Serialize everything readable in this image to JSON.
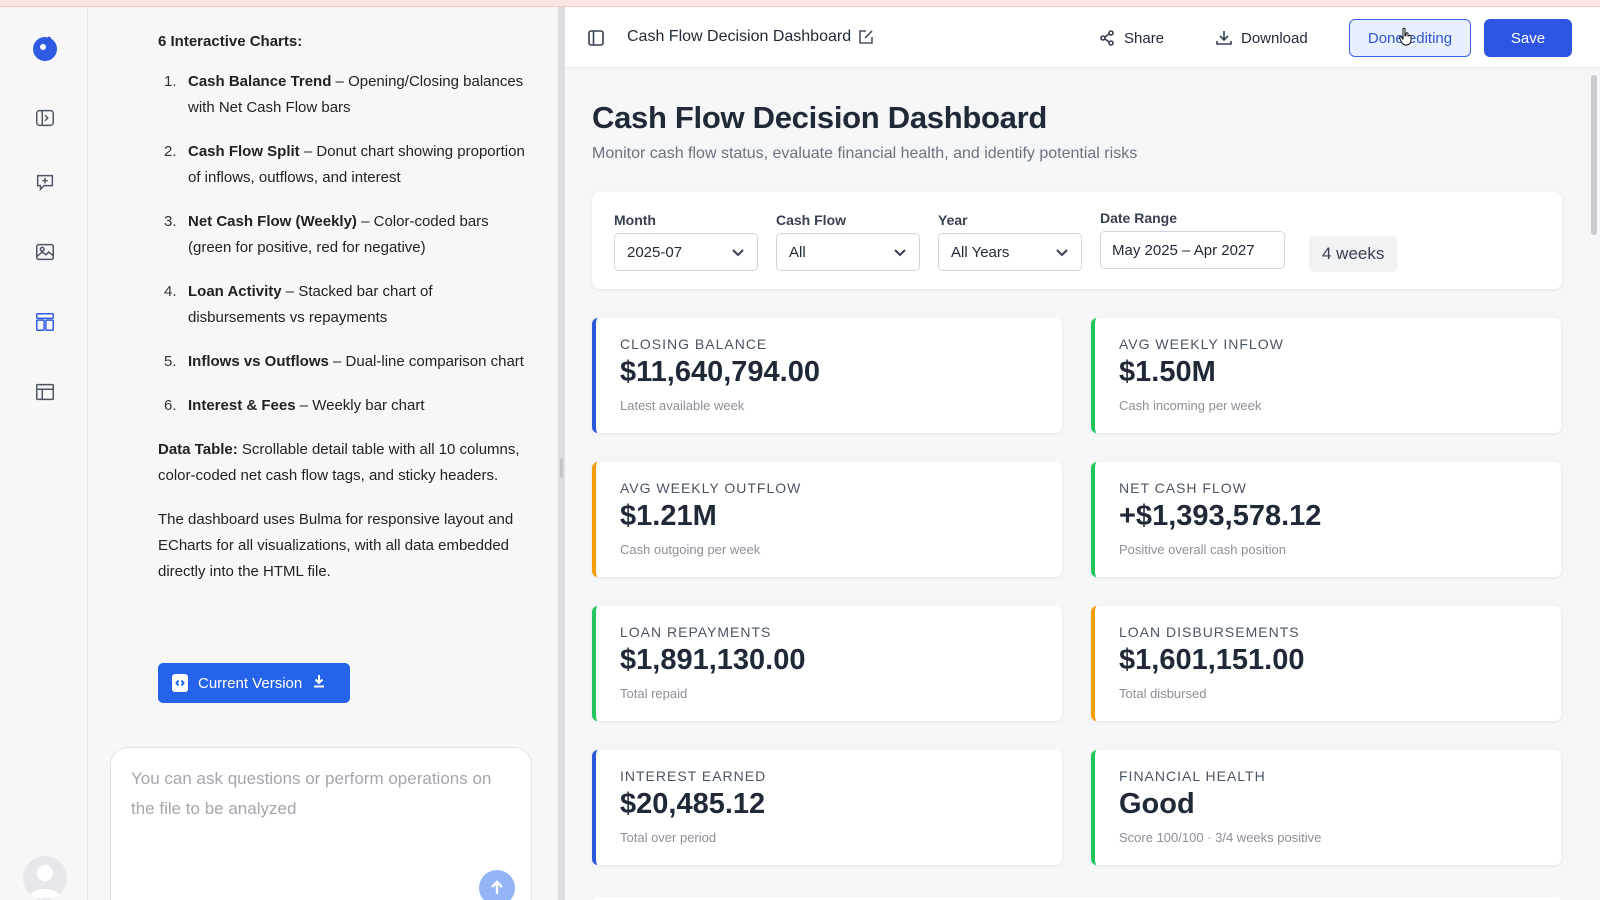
{
  "rail": {
    "items": [
      "logo-icon",
      "sidebar-toggle-icon",
      "new-chat-icon",
      "image-gallery-icon",
      "dashboard-icon",
      "table-layout-icon",
      "avatar"
    ]
  },
  "chat": {
    "heading": "6 Interactive Charts:",
    "list": [
      {
        "num": "1.",
        "title": "Cash Balance Trend",
        "desc": " – Opening/Closing balances with Net Cash Flow bars"
      },
      {
        "num": "2.",
        "title": "Cash Flow Split",
        "desc": " – Donut chart showing proportion of inflows, outflows, and interest"
      },
      {
        "num": "3.",
        "title": "Net Cash Flow (Weekly)",
        "desc": " – Color-coded bars (green for positive, red for negative)"
      },
      {
        "num": "4.",
        "title": "Loan Activity",
        "desc": " – Stacked bar chart of disbursements vs repayments"
      },
      {
        "num": "5.",
        "title": "Inflows vs Outflows",
        "desc": " – Dual-line comparison chart"
      },
      {
        "num": "6.",
        "title": "Interest & Fees",
        "desc": " – Weekly bar chart"
      }
    ],
    "table_para_title": "Data Table:",
    "table_para_text": " Scrollable detail table with all 10 columns, color-coded net cash flow tags, and sticky headers.",
    "bulma_para": "The dashboard uses Bulma for responsive layout and ECharts for all visualizations, with all data embedded directly into the HTML file.",
    "version_button": "Current Version",
    "input_placeholder": "You can ask questions or perform operations on the file to be analyzed"
  },
  "toolbar": {
    "title": "Cash Flow Decision Dashboard",
    "share": "Share",
    "download": "Download",
    "done_editing": "Done editing",
    "save": "Save"
  },
  "dashboard": {
    "title": "Cash Flow Decision Dashboard",
    "subtitle": "Monitor cash flow status, evaluate financial health, and identify potential risks",
    "filters": {
      "month_label": "Month",
      "month_value": "2025-07",
      "cashflow_label": "Cash Flow",
      "cashflow_value": "All",
      "year_label": "Year",
      "year_value": "All Years",
      "range_label": "Date Range",
      "range_value": "May 2025 – Apr 2027",
      "weeks": "4 weeks"
    },
    "cards": [
      {
        "label": "CLOSING BALANCE",
        "value": "$11,640,794.00",
        "sub": "Latest available week",
        "accent": "#2d5ad8"
      },
      {
        "label": "AVG WEEKLY INFLOW",
        "value": "$1.50M",
        "sub": "Cash incoming per week",
        "accent": "#22c55e"
      },
      {
        "label": "AVG WEEKLY OUTFLOW",
        "value": "$1.21M",
        "sub": "Cash outgoing per week",
        "accent": "#f59e0b"
      },
      {
        "label": "NET CASH FLOW",
        "value": "+$1,393,578.12",
        "sub": "Positive overall cash position",
        "accent": "#22c55e"
      },
      {
        "label": "LOAN REPAYMENTS",
        "value": "$1,891,130.00",
        "sub": "Total repaid",
        "accent": "#22c55e"
      },
      {
        "label": "LOAN DISBURSEMENTS",
        "value": "$1,601,151.00",
        "sub": "Total disbursed",
        "accent": "#f59e0b"
      },
      {
        "label": "INTEREST EARNED",
        "value": "$20,485.12",
        "sub": "Total over period",
        "accent": "#2d5ad8"
      },
      {
        "label": "FINANCIAL HEALTH",
        "value": "Good",
        "sub": "Score 100/100 · 3/4 weeks positive",
        "accent": "#22c55e"
      }
    ]
  }
}
